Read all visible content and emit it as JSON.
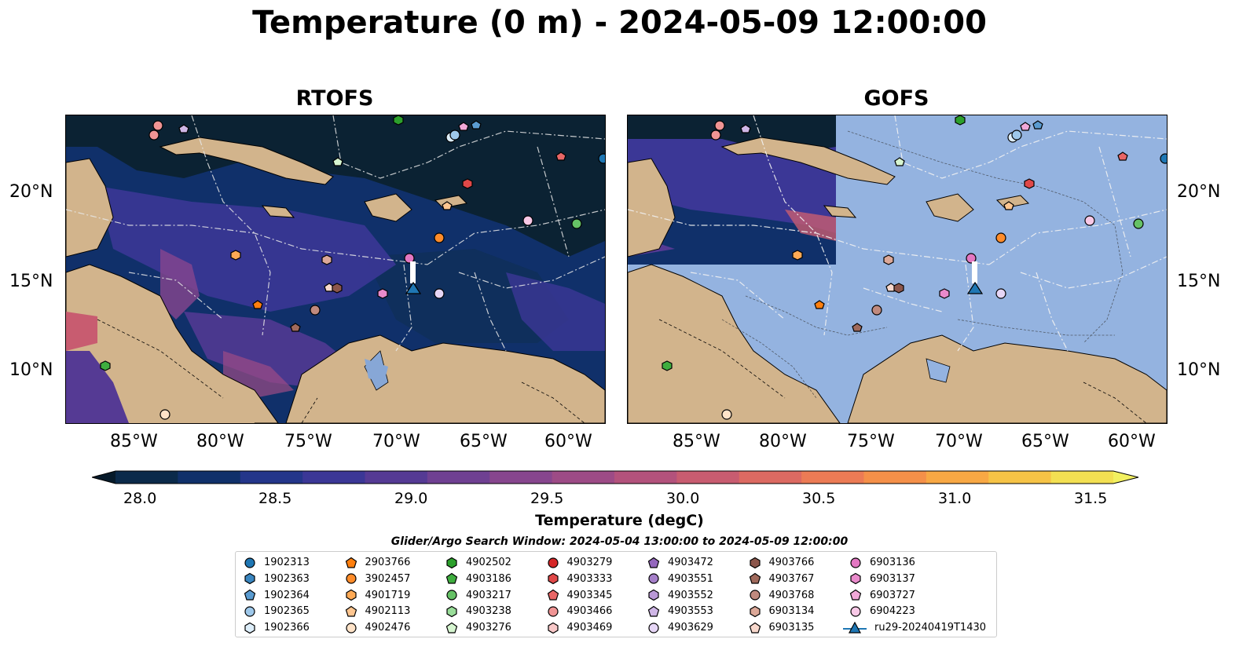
{
  "title": "Temperature (0 m) - 2024-05-09 12:00:00",
  "panels": [
    {
      "title": "RTOFS"
    },
    {
      "title": "GOFS"
    }
  ],
  "y_ticks": [
    "20°N",
    "15°N",
    "10°N"
  ],
  "x_ticks": [
    "85°W",
    "80°W",
    "75°W",
    "70°W",
    "65°W",
    "60°W"
  ],
  "colorbar": {
    "label": "Temperature (degC)",
    "ticks": [
      "28.0",
      "28.5",
      "29.0",
      "29.5",
      "30.0",
      "30.5",
      "31.0",
      "31.5"
    ],
    "colors": [
      "#0b2a4a",
      "#10306a",
      "#24368a",
      "#3b3796",
      "#553a94",
      "#6f4092",
      "#87468e",
      "#9d4b86",
      "#b3527c",
      "#c85c70",
      "#dc6a62",
      "#ec7b55",
      "#f59049",
      "#f8a844",
      "#f6c346",
      "#f3e052"
    ]
  },
  "legend": {
    "title": "Glider/Argo Search Window: 2024-05-04 13:00:00 to 2024-05-09 12:00:00",
    "items": [
      {
        "label": "1902313",
        "marker": "circle",
        "color": "#1f77b4"
      },
      {
        "label": "1902363",
        "marker": "hexagon",
        "color": "#3a86c0"
      },
      {
        "label": "1902364",
        "marker": "pentagon",
        "color": "#5a9bd0"
      },
      {
        "label": "1902365",
        "marker": "circle",
        "color": "#9ec8ea"
      },
      {
        "label": "1902366",
        "marker": "hexagon",
        "color": "#ddeefa"
      },
      {
        "label": "2903766",
        "marker": "pentagon",
        "color": "#ff7f0e"
      },
      {
        "label": "3902457",
        "marker": "circle",
        "color": "#ff8c2a"
      },
      {
        "label": "4901719",
        "marker": "hexagon",
        "color": "#ffaa55"
      },
      {
        "label": "4902113",
        "marker": "pentagon",
        "color": "#ffc690"
      },
      {
        "label": "4902476",
        "marker": "circle",
        "color": "#ffe3c8"
      },
      {
        "label": "4902502",
        "marker": "hexagon",
        "color": "#2ca02c"
      },
      {
        "label": "4903186",
        "marker": "pentagon",
        "color": "#3fae3f"
      },
      {
        "label": "4903217",
        "marker": "circle",
        "color": "#66c266"
      },
      {
        "label": "4903238",
        "marker": "hexagon",
        "color": "#99dd99"
      },
      {
        "label": "4903276",
        "marker": "pentagon",
        "color": "#d6f5d0"
      },
      {
        "label": "4903279",
        "marker": "circle",
        "color": "#d62728"
      },
      {
        "label": "4903333",
        "marker": "hexagon",
        "color": "#e04848"
      },
      {
        "label": "4903345",
        "marker": "pentagon",
        "color": "#e86666"
      },
      {
        "label": "4903466",
        "marker": "circle",
        "color": "#f09494"
      },
      {
        "label": "4903469",
        "marker": "hexagon",
        "color": "#f8c8c8"
      },
      {
        "label": "4903472",
        "marker": "pentagon",
        "color": "#9467bd"
      },
      {
        "label": "4903551",
        "marker": "circle",
        "color": "#a57fc9"
      },
      {
        "label": "4903552",
        "marker": "hexagon",
        "color": "#b998d6"
      },
      {
        "label": "4903553",
        "marker": "pentagon",
        "color": "#cfb6e6"
      },
      {
        "label": "4903629",
        "marker": "circle",
        "color": "#e6d6f6"
      },
      {
        "label": "4903766",
        "marker": "hexagon",
        "color": "#8c564b"
      },
      {
        "label": "4903767",
        "marker": "pentagon",
        "color": "#a06a5c"
      },
      {
        "label": "4903768",
        "marker": "circle",
        "color": "#c08a7e"
      },
      {
        "label": "6903134",
        "marker": "hexagon",
        "color": "#dca898"
      },
      {
        "label": "6903135",
        "marker": "pentagon",
        "color": "#f8d8cc"
      },
      {
        "label": "6903136",
        "marker": "circle",
        "color": "#e377c2"
      },
      {
        "label": "6903137",
        "marker": "hexagon",
        "color": "#e98acb"
      },
      {
        "label": "6903727",
        "marker": "pentagon",
        "color": "#f1a8d8"
      },
      {
        "label": "6904223",
        "marker": "circle",
        "color": "#f8c8e6"
      },
      {
        "label": "ru29-20240419T1430",
        "marker": "triangle",
        "color": "#1f77b4"
      }
    ]
  }
}
